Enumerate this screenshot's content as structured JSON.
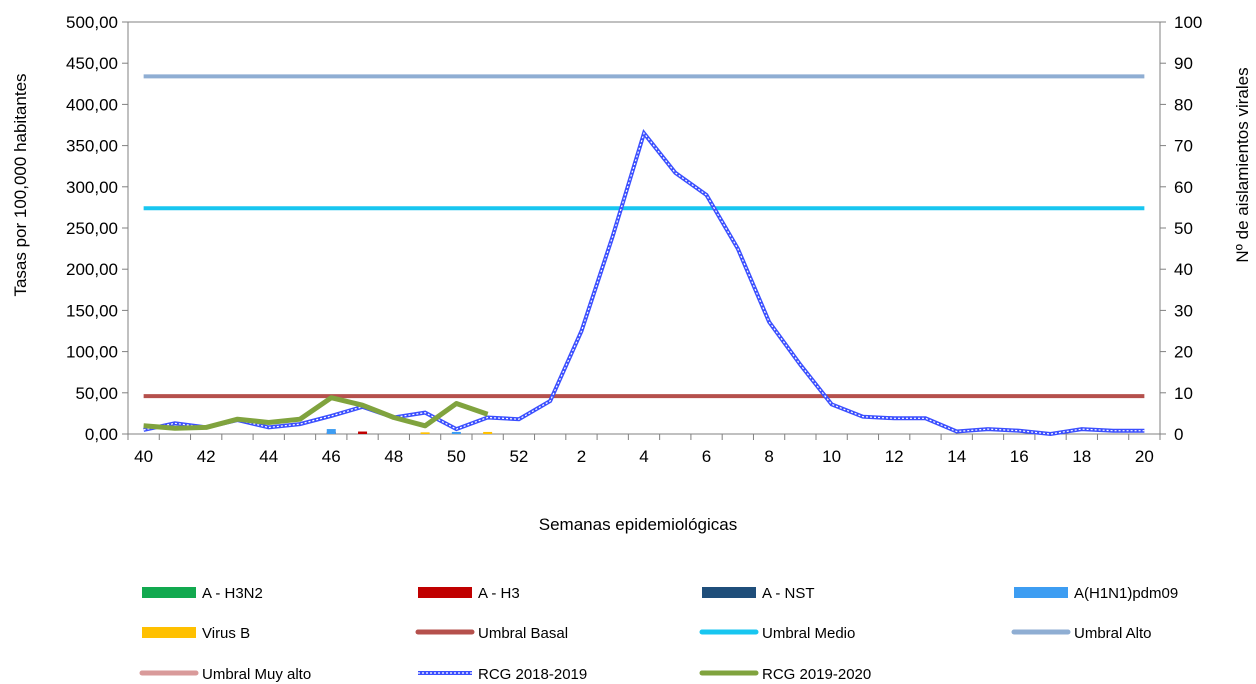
{
  "chart_data": {
    "type": "line",
    "xlabel": "Semanas epidemiológicas",
    "ylabel": "Tasas por 100,000 habitantes",
    "y2label": "Nº de aislamientos virales",
    "ylim": [
      0,
      500
    ],
    "y2lim": [
      0,
      100
    ],
    "x_weeks": [
      40,
      41,
      42,
      43,
      44,
      45,
      46,
      47,
      48,
      49,
      50,
      51,
      52,
      1,
      2,
      3,
      4,
      5,
      6,
      7,
      8,
      9,
      10,
      11,
      12,
      13,
      14,
      15,
      16,
      17,
      18,
      19,
      20
    ],
    "x_tick_labels": [
      "40",
      "42",
      "44",
      "46",
      "48",
      "50",
      "52",
      "2",
      "4",
      "6",
      "8",
      "10",
      "12",
      "14",
      "16",
      "18",
      "20"
    ],
    "y_tick_labels": [
      "0,00",
      "50,00",
      "100,00",
      "150,00",
      "200,00",
      "250,00",
      "300,00",
      "350,00",
      "400,00",
      "450,00",
      "500,00"
    ],
    "y2_tick_labels": [
      "0",
      "10",
      "20",
      "30",
      "40",
      "50",
      "60",
      "70",
      "80",
      "90",
      "100"
    ],
    "grid": "none",
    "legend_position": "bottom",
    "thresholds": [
      {
        "name": "Umbral Basal",
        "value": 46,
        "color": "#b5504c"
      },
      {
        "name": "Umbral Medio",
        "value": 274,
        "color": "#18c6f0"
      },
      {
        "name": "Umbral Alto",
        "value": 434,
        "color": "#8faed3"
      },
      {
        "name": "Umbral Muy alto",
        "value": null,
        "color": "#d99a9a"
      }
    ],
    "series": [
      {
        "name": "RCG 2018-2019",
        "axis": "left",
        "color": "#3b4fff",
        "values": [
          5,
          13,
          8,
          17,
          8,
          12,
          22,
          33,
          20,
          26,
          6,
          20,
          18,
          40,
          125,
          240,
          365,
          317,
          290,
          225,
          136,
          84,
          36,
          21,
          19,
          19,
          3,
          6,
          4,
          0,
          6,
          4,
          4
        ]
      },
      {
        "name": "RCG 2019-2020",
        "axis": "left",
        "color": "#80a33e",
        "values": [
          10,
          7,
          8,
          18,
          14,
          18,
          44,
          35,
          20,
          10,
          37,
          24
        ]
      }
    ],
    "bar_series": [
      {
        "name": "A - H3N2",
        "axis": "right",
        "color": "#12a94f",
        "values": {}
      },
      {
        "name": "A - H3",
        "axis": "right",
        "color": "#c00000",
        "values": {
          "46": 0.5,
          "47": 0.6
        }
      },
      {
        "name": "A - NST",
        "axis": "right",
        "color": "#1f4e7a",
        "values": {}
      },
      {
        "name": "A(H1N1)pdm09",
        "axis": "right",
        "color": "#3d9df2",
        "values": {
          "46": 1.2,
          "50": 0.5
        }
      },
      {
        "name": "Virus B",
        "axis": "right",
        "color": "#ffc000",
        "values": {
          "49": 0.4,
          "51": 0.5
        }
      }
    ]
  },
  "legend": [
    {
      "label": "A - H3N2",
      "kind": "box",
      "color": "#12a94f"
    },
    {
      "label": "A - H3",
      "kind": "box",
      "color": "#c00000"
    },
    {
      "label": "A - NST",
      "kind": "box",
      "color": "#1f4e7a"
    },
    {
      "label": "A(H1N1)pdm09",
      "kind": "box",
      "color": "#3d9df2"
    },
    {
      "label": "Virus B",
      "kind": "box",
      "color": "#ffc000"
    },
    {
      "label": "Umbral Basal",
      "kind": "line",
      "color": "#b5504c"
    },
    {
      "label": "Umbral Medio",
      "kind": "line",
      "color": "#18c6f0"
    },
    {
      "label": "Umbral Alto",
      "kind": "line",
      "color": "#8faed3"
    },
    {
      "label": "Umbral Muy alto",
      "kind": "line",
      "color": "#d99a9a"
    },
    {
      "label": "RCG 2018-2019",
      "kind": "dashed",
      "color": "#3b4fff"
    },
    {
      "label": "RCG 2019-2020",
      "kind": "line",
      "color": "#80a33e"
    }
  ]
}
